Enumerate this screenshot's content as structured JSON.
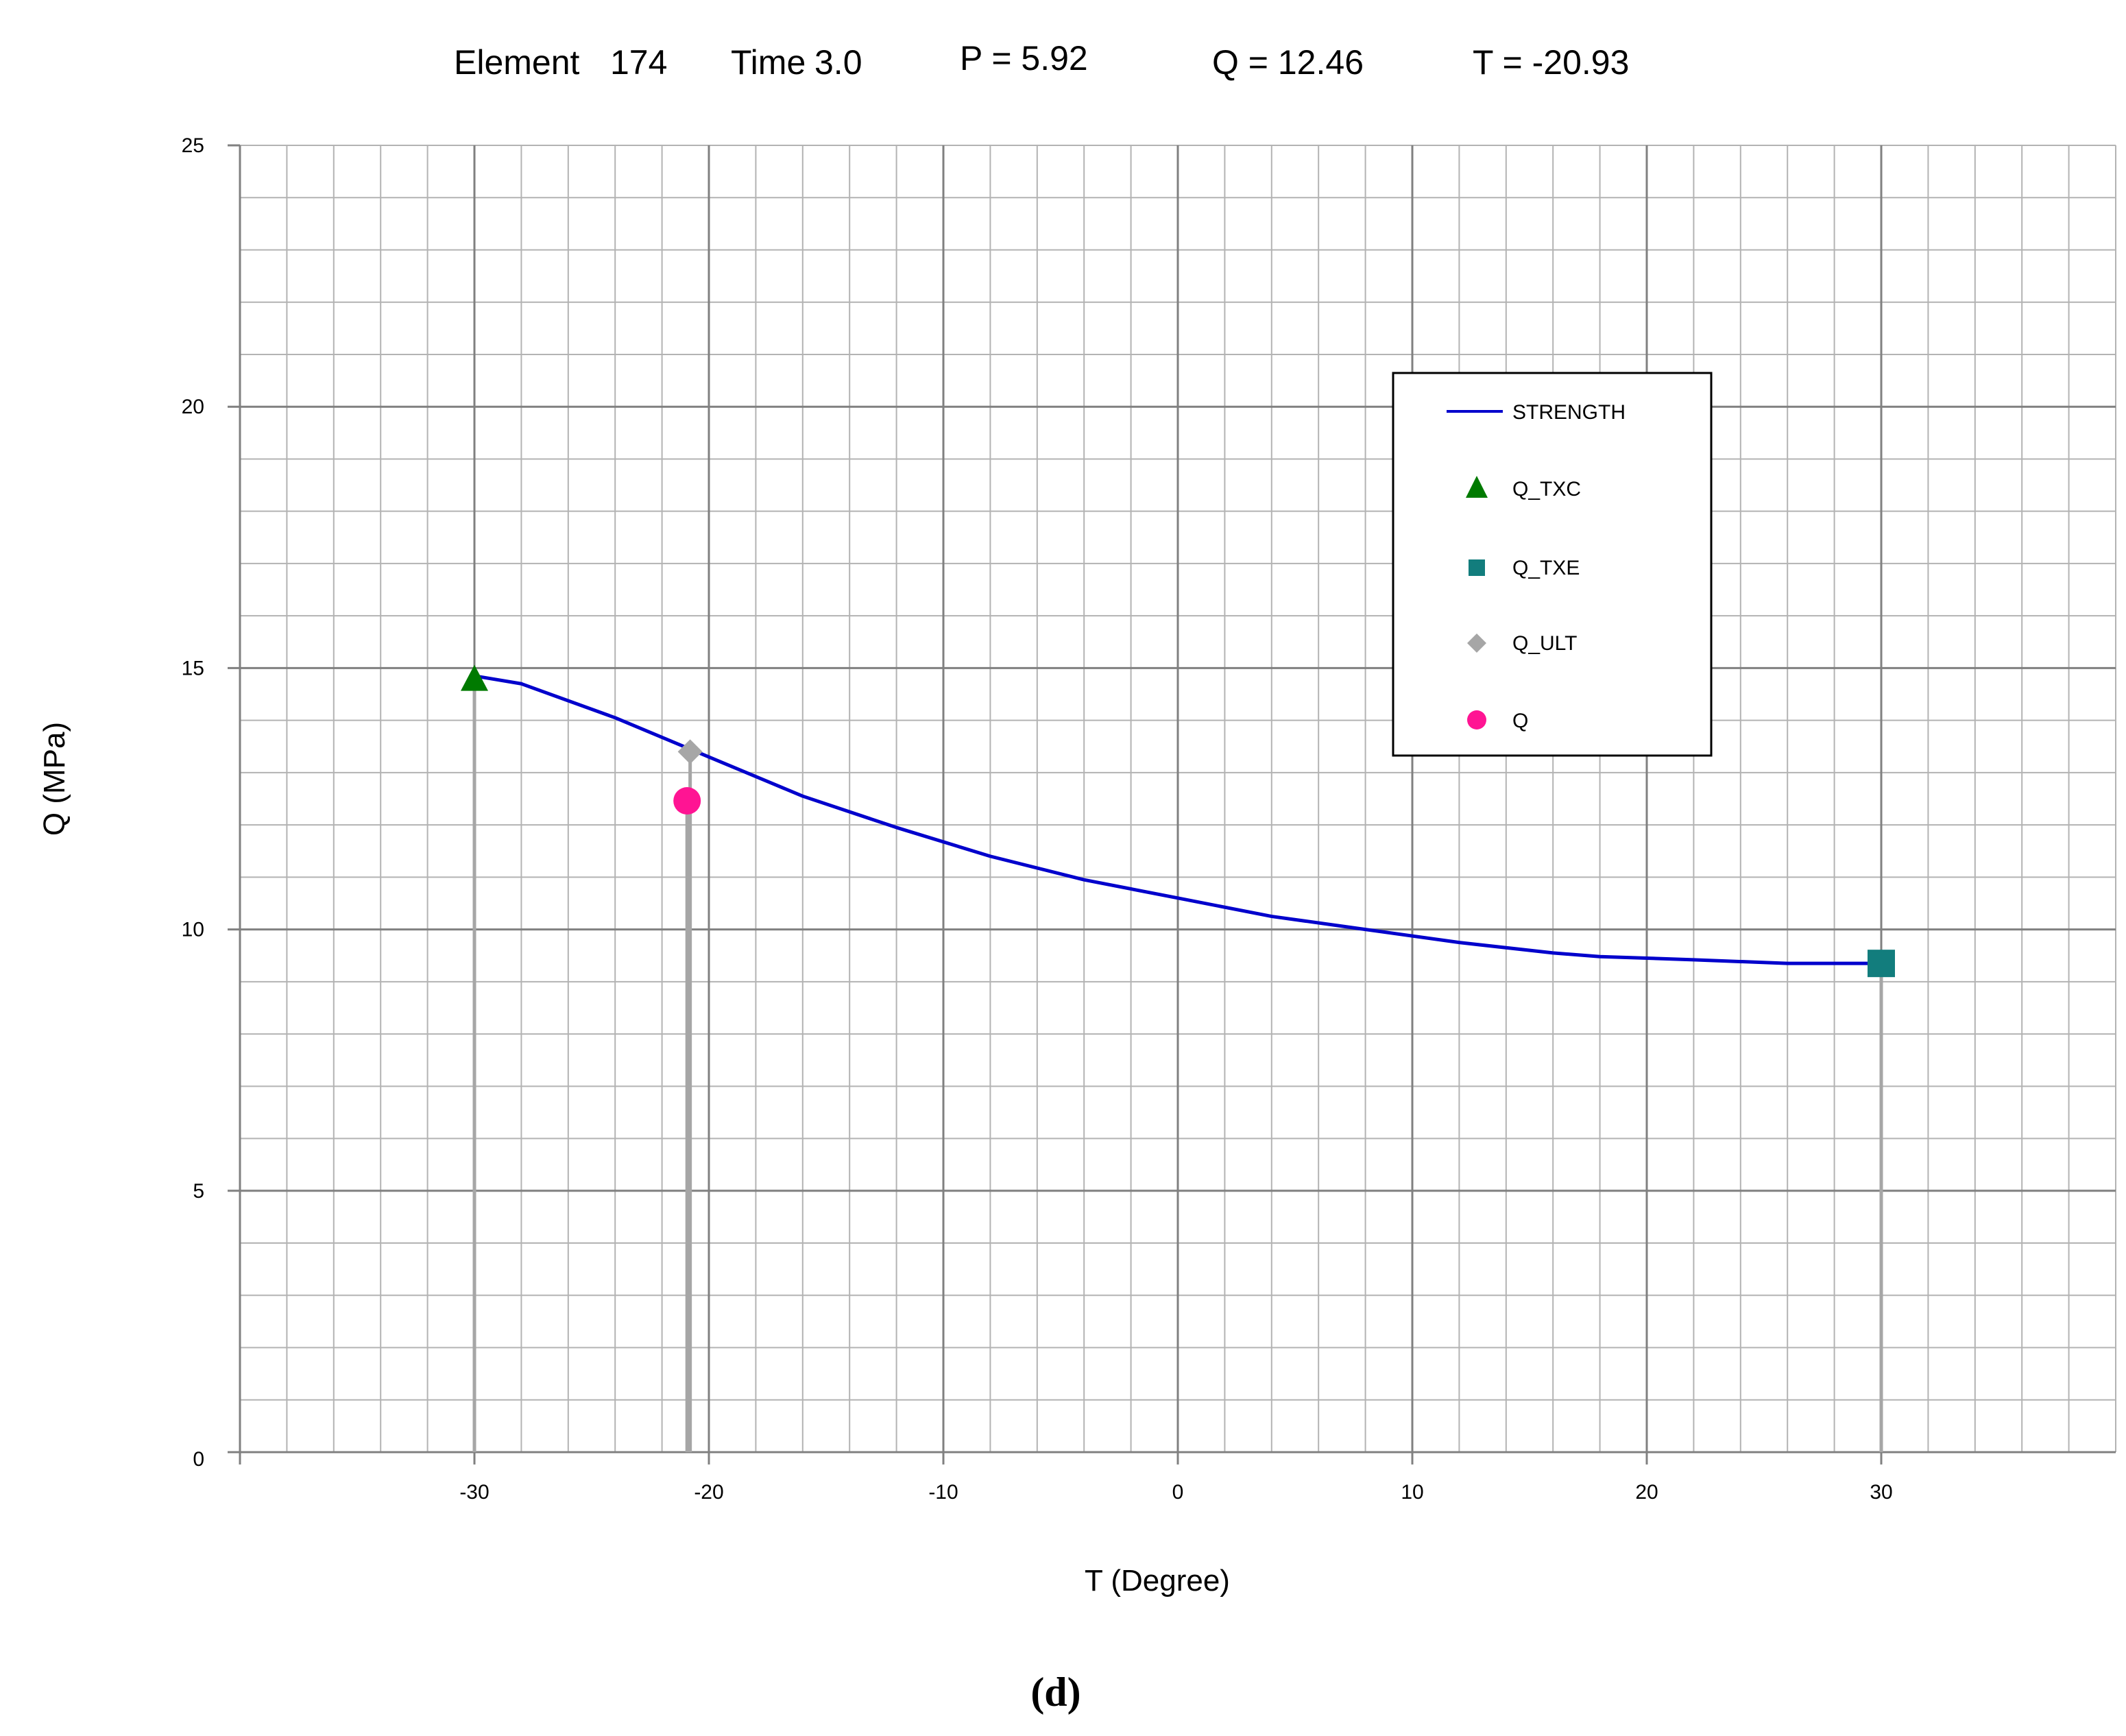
{
  "header": {
    "element_label": "Element",
    "element_value": "174",
    "time_label": "Time",
    "time_value": "3.0",
    "p_text": "P = 5.92",
    "q_text": "Q = 12.46",
    "t_text": "T = -20.93"
  },
  "caption": "(d)",
  "chart_data": {
    "type": "line",
    "xlabel": "T (Degree)",
    "ylabel": "Q  (MPa)",
    "xlim": [
      -40,
      40
    ],
    "ylim": [
      0,
      25
    ],
    "x_ticks": [
      -30,
      -20,
      -10,
      0,
      10,
      20,
      30
    ],
    "y_ticks": [
      0,
      5,
      10,
      15,
      20,
      25
    ],
    "grid": true,
    "legend_position": "upper-right",
    "colors": {
      "STRENGTH": "#0000cc",
      "Q_TXC": "#007a00",
      "Q_TXE": "#127d7d",
      "Q_ULT": "#a6a6a6",
      "Q": "#ff1493",
      "drop_lines": "#a6a6a6",
      "major_grid": "#808080",
      "minor_grid": "#b3b3b3"
    },
    "series": [
      {
        "name": "STRENGTH",
        "kind": "line",
        "x": [
          -30,
          -28,
          -24,
          -20,
          -16,
          -12,
          -8,
          -4,
          0,
          4,
          8,
          12,
          16,
          18,
          22,
          26,
          30
        ],
        "y": [
          14.85,
          14.7,
          14.05,
          13.3,
          12.55,
          11.95,
          11.4,
          10.95,
          10.6,
          10.25,
          10.0,
          9.75,
          9.55,
          9.48,
          9.42,
          9.35,
          9.35
        ]
      },
      {
        "name": "Q_TXC",
        "kind": "triangle",
        "x": [
          -30
        ],
        "y": [
          14.8
        ]
      },
      {
        "name": "Q_TXE",
        "kind": "square",
        "x": [
          30
        ],
        "y": [
          9.35
        ]
      },
      {
        "name": "Q_ULT",
        "kind": "diamond",
        "x": [
          -20.8
        ],
        "y": [
          13.4
        ]
      },
      {
        "name": "Q",
        "kind": "circle",
        "x": [
          -20.93
        ],
        "y": [
          12.46
        ]
      }
    ],
    "drop_lines": [
      {
        "x": -30,
        "y": 14.8
      },
      {
        "x": -20.8,
        "y": 13.4
      },
      {
        "x": -20.93,
        "y": 12.46
      },
      {
        "x": 30,
        "y": 9.35
      }
    ]
  }
}
